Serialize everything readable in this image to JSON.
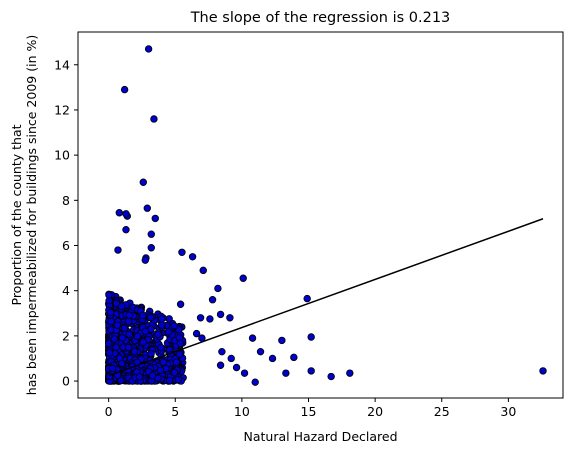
{
  "chart_data": {
    "type": "scatter",
    "title": "The slope of the regression is 0.213",
    "xlabel": "Natural Hazard Declared",
    "ylabel_line1": "Proportion of the county that",
    "ylabel_line2": "has been impermeabilized for buildings since 2009 (in %)",
    "xlim": [
      -2.3,
      34.1
    ],
    "ylim": [
      -0.75,
      15.45
    ],
    "xticks": [
      0,
      5,
      10,
      15,
      20,
      25,
      30
    ],
    "yticks": [
      0,
      2,
      4,
      6,
      8,
      10,
      12,
      14
    ],
    "grid": false,
    "legend": "none",
    "marker_fill": "#0000cc",
    "marker_edge": "#000000",
    "line_color": "#000000",
    "regression": {
      "slope": 0.213,
      "intercept": 0.24,
      "x_start": 0,
      "x_end": 32.6
    },
    "points": [
      [
        3.0,
        14.7
      ],
      [
        1.2,
        12.9
      ],
      [
        3.4,
        11.6
      ],
      [
        2.6,
        8.8
      ],
      [
        2.9,
        7.65
      ],
      [
        3.5,
        7.2
      ],
      [
        0.8,
        7.45
      ],
      [
        1.4,
        7.3
      ],
      [
        1.3,
        7.4
      ],
      [
        1.3,
        6.7
      ],
      [
        3.2,
        6.5
      ],
      [
        0.7,
        5.8
      ],
      [
        2.8,
        5.45
      ],
      [
        2.75,
        5.35
      ],
      [
        3.2,
        5.9
      ],
      [
        5.5,
        5.7
      ],
      [
        6.3,
        5.5
      ],
      [
        7.1,
        4.9
      ],
      [
        10.1,
        4.55
      ],
      [
        8.2,
        4.1
      ],
      [
        7.8,
        3.6
      ],
      [
        5.4,
        3.4
      ],
      [
        6.9,
        2.8
      ],
      [
        7.6,
        2.75
      ],
      [
        8.4,
        2.95
      ],
      [
        9.1,
        2.8
      ],
      [
        6.6,
        2.1
      ],
      [
        7.0,
        1.9
      ],
      [
        8.5,
        1.3
      ],
      [
        9.2,
        1.0
      ],
      [
        8.4,
        0.7
      ],
      [
        9.6,
        0.6
      ],
      [
        10.2,
        0.35
      ],
      [
        10.8,
        1.9
      ],
      [
        11.4,
        1.3
      ],
      [
        12.3,
        1.0
      ],
      [
        13.0,
        1.8
      ],
      [
        13.3,
        0.35
      ],
      [
        13.9,
        1.05
      ],
      [
        15.2,
        1.95
      ],
      [
        15.2,
        0.45
      ],
      [
        16.7,
        0.2
      ],
      [
        18.1,
        0.35
      ],
      [
        14.9,
        3.65
      ],
      [
        11.0,
        -0.05
      ],
      [
        32.6,
        0.45
      ]
    ]
  }
}
